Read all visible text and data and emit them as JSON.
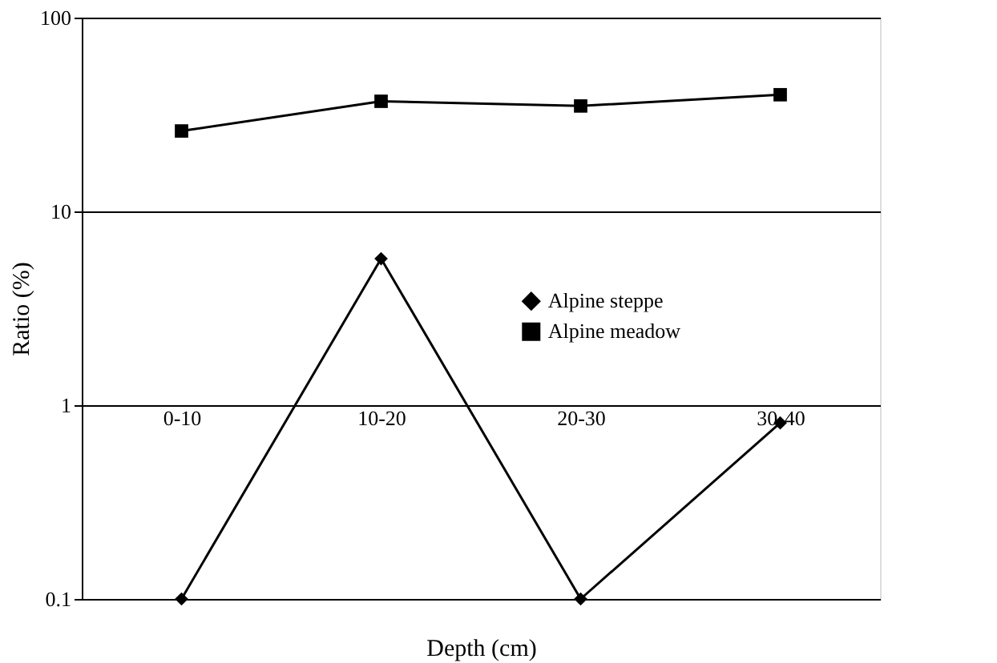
{
  "chart_data": {
    "type": "line",
    "xlabel": "Depth (cm)",
    "ylabel": "Ratio (%)",
    "categories": [
      "0-10",
      "10-20",
      "20-30",
      "30-40"
    ],
    "series": [
      {
        "name": "Alpine steppe",
        "color": "#000000",
        "marker": "diamond",
        "values": [
          0.1,
          5.7,
          0.1,
          0.81
        ]
      },
      {
        "name": "Alpine meadow",
        "color": "#000000",
        "marker": "square",
        "values": [
          26,
          37,
          35,
          40
        ]
      }
    ],
    "log": true,
    "ylim": [
      0.1,
      100
    ],
    "yticks": [
      0.1,
      1,
      10,
      100
    ],
    "grid": "y",
    "legend": "right",
    "line_style": "solid"
  }
}
